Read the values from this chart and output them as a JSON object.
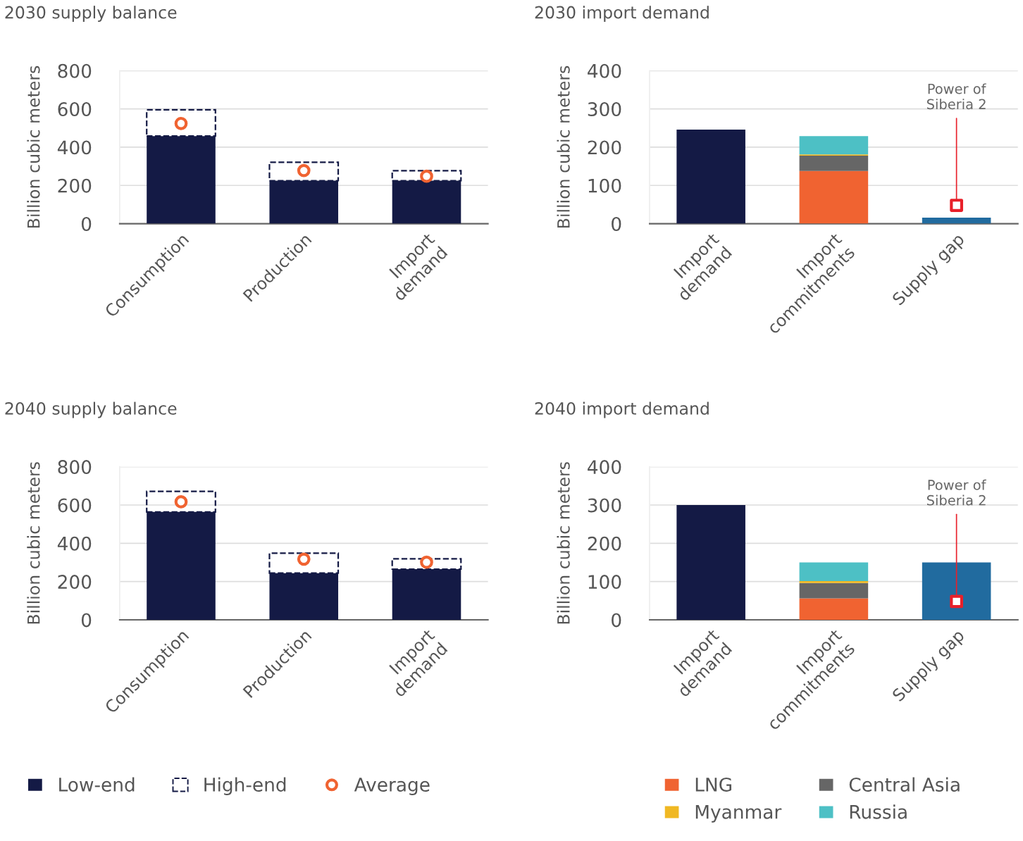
{
  "chart_data": [
    {
      "type": "bar",
      "title": "2030 supply balance",
      "ylabel": "Billion cubic meters",
      "categories": [
        "Consumption",
        "Production",
        "Import\ndemand"
      ],
      "stacked": true,
      "ylim": [
        0,
        800
      ],
      "yticks": [
        0,
        200,
        400,
        600,
        800
      ],
      "grid": "y",
      "legend": false,
      "series": [
        {
          "color": "#141a45",
          "values": [
            458,
            225,
            225
          ]
        },
        {
          "color": "#141a45",
          "line_style": "dashed",
          "values": [
            137,
            96,
            52
          ]
        },
        {
          "type": "scatter",
          "marker": "circle",
          "color": "#f06331",
          "values": [
            524,
            278,
            248
          ]
        }
      ]
    },
    {
      "type": "bar",
      "title": "2030 import demand",
      "ylabel": "Billion cubic meters",
      "categories": [
        "Import\ndemand",
        "Import\ncommitments",
        "Supply gap"
      ],
      "stacked": true,
      "ylim": [
        0,
        400
      ],
      "yticks": [
        0,
        100,
        200,
        300,
        400
      ],
      "grid": "y",
      "legend": false,
      "series": [
        {
          "color": "#141a45",
          "values": [
            246,
            null,
            null
          ]
        },
        {
          "color": "#f06331",
          "values": [
            null,
            138,
            null
          ]
        },
        {
          "color": "#666666",
          "values": [
            null,
            40,
            null
          ]
        },
        {
          "color": "#f0b823",
          "values": [
            null,
            3,
            null
          ]
        },
        {
          "color": "#4dc0c5",
          "values": [
            null,
            48,
            null
          ]
        },
        {
          "color": "#216b9f",
          "values": [
            null,
            null,
            16
          ]
        },
        {
          "type": "scatter",
          "marker": "square",
          "color": "#e8202a",
          "values": [
            null,
            null,
            48
          ]
        }
      ],
      "annotations": [
        {
          "text": "Power of\nSiberia 2",
          "y": 48
        }
      ]
    },
    {
      "type": "bar",
      "title": "2040 supply balance",
      "ylabel": "Billion cubic meters",
      "categories": [
        "Consumption",
        "Production",
        "Import\ndemand"
      ],
      "stacked": true,
      "ylim": [
        0,
        800
      ],
      "yticks": [
        0,
        200,
        400,
        600,
        800
      ],
      "grid": "y",
      "legend": "bottom",
      "series": [
        {
          "name": "Low-end",
          "color": "#141a45",
          "values": [
            564,
            244,
            265
          ]
        },
        {
          "name": "High-end",
          "color": "#141a45",
          "line_style": "dashed",
          "values": [
            107,
            104,
            54
          ]
        },
        {
          "name": "Average",
          "type": "scatter",
          "marker": "circle",
          "color": "#f06331",
          "values": [
            617,
            317,
            301
          ]
        }
      ]
    },
    {
      "type": "bar",
      "title": "2040 import demand",
      "ylabel": "Billion cubic meters",
      "categories": [
        "Import\ndemand",
        "Import\ncommitments",
        "Supply gap"
      ],
      "stacked": true,
      "ylim": [
        0,
        400
      ],
      "yticks": [
        0,
        100,
        200,
        300,
        400
      ],
      "grid": "y",
      "legend": "bottom",
      "series": [
        {
          "color": "#141a45",
          "values": [
            300,
            null,
            null
          ]
        },
        {
          "name": "LNG",
          "color": "#f06331",
          "values": [
            null,
            56,
            null
          ]
        },
        {
          "name": "Central Asia",
          "color": "#666666",
          "values": [
            null,
            40,
            null
          ]
        },
        {
          "name": "Myanmar",
          "color": "#f0b823",
          "values": [
            null,
            5,
            null
          ]
        },
        {
          "name": "Russia",
          "color": "#4dc0c5",
          "values": [
            null,
            49,
            null
          ]
        },
        {
          "color": "#216b9f",
          "values": [
            null,
            null,
            150
          ]
        },
        {
          "type": "scatter",
          "marker": "square",
          "color": "#e8202a",
          "values": [
            null,
            null,
            48
          ]
        }
      ],
      "annotations": [
        {
          "text": "Power of\nSiberia 2",
          "y": 48
        }
      ]
    }
  ]
}
